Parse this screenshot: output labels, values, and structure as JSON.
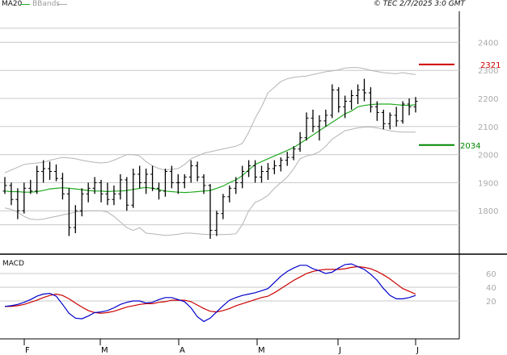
{
  "header": {
    "ma_label": "MA20",
    "bb_label": "BBands",
    "timestamp": "© TEC 2/7/2025 3:0 GMT"
  },
  "colors": {
    "ma": "#22aa22",
    "bbands": "#b4b4b4",
    "price": "#000000",
    "resistance": "#cc0000",
    "support": "#008800",
    "macd": "#0000cc",
    "signal": "#cc0000",
    "grid": "#c8c8c8"
  },
  "chart_data": [
    {
      "type": "ohlc",
      "panel": "price",
      "yticks": [
        1800,
        1900,
        2000,
        2100,
        2200,
        2300,
        2400
      ],
      "ylim": [
        1700,
        2490
      ],
      "xticks": [
        "F",
        "M",
        "A",
        "M",
        "J",
        "J"
      ],
      "levels": [
        {
          "label": "2321",
          "value": 2321,
          "kind": "resistance"
        },
        {
          "label": "2034",
          "value": 2034,
          "kind": "support"
        }
      ],
      "series": [
        {
          "name": "MA20",
          "values": [
            1870,
            1868,
            1868,
            1866,
            1866,
            1868,
            1872,
            1878,
            1880,
            1882,
            1880,
            1878,
            1875,
            1872,
            1870,
            1870,
            1868,
            1870,
            1870,
            1872,
            1876,
            1880,
            1883,
            1880,
            1875,
            1870,
            1868,
            1866,
            1865,
            1866,
            1868,
            1870,
            1872,
            1880,
            1888,
            1900,
            1910,
            1925,
            1945,
            1965,
            1975,
            1985,
            1995,
            2005,
            2015,
            2025,
            2040,
            2055,
            2070,
            2085,
            2100,
            2115,
            2130,
            2145,
            2155,
            2170,
            2175,
            2178,
            2180,
            2180,
            2180,
            2178,
            2176,
            2175,
            2178
          ]
        }
      ],
      "bbands_upper": [
        1935,
        1945,
        1955,
        1965,
        1968,
        1970,
        1972,
        1980,
        1985,
        1990,
        1988,
        1985,
        1980,
        1976,
        1972,
        1970,
        1972,
        1980,
        1990,
        2000,
        2000,
        1995,
        1975,
        1960,
        1950,
        1945,
        1948,
        1950,
        1965,
        1985,
        1995,
        2005,
        2010,
        2015,
        2020,
        2025,
        2030,
        2040,
        2080,
        2130,
        2170,
        2220,
        2240,
        2260,
        2270,
        2275,
        2278,
        2280,
        2285,
        2290,
        2295,
        2298,
        2302,
        2308,
        2310,
        2310,
        2306,
        2300,
        2296,
        2292,
        2290,
        2288,
        2292,
        2288,
        2285
      ],
      "bbands_lower": [
        1810,
        1805,
        1795,
        1780,
        1770,
        1768,
        1770,
        1776,
        1780,
        1785,
        1790,
        1795,
        1798,
        1800,
        1800,
        1800,
        1795,
        1780,
        1760,
        1740,
        1730,
        1740,
        1720,
        1718,
        1715,
        1712,
        1714,
        1716,
        1720,
        1720,
        1718,
        1716,
        1715,
        1715,
        1715,
        1716,
        1718,
        1750,
        1800,
        1830,
        1840,
        1855,
        1880,
        1900,
        1920,
        1950,
        1985,
        1995,
        2000,
        2010,
        2030,
        2055,
        2070,
        2085,
        2090,
        2095,
        2098,
        2098,
        2095,
        2090,
        2085,
        2082,
        2080,
        2080,
        2080
      ],
      "ohlc": [
        [
          1870,
          1920,
          1860,
          1890
        ],
        [
          1890,
          1900,
          1820,
          1840
        ],
        [
          1840,
          1880,
          1770,
          1800
        ],
        [
          1800,
          1900,
          1790,
          1880
        ],
        [
          1880,
          1910,
          1860,
          1870
        ],
        [
          1870,
          1960,
          1860,
          1940
        ],
        [
          1940,
          1980,
          1900,
          1950
        ],
        [
          1950,
          1975,
          1910,
          1940
        ],
        [
          1940,
          1965,
          1905,
          1915
        ],
        [
          1915,
          1935,
          1840,
          1860
        ],
        [
          1860,
          1880,
          1710,
          1740
        ],
        [
          1740,
          1820,
          1720,
          1800
        ],
        [
          1800,
          1880,
          1780,
          1860
        ],
        [
          1860,
          1900,
          1830,
          1880
        ],
        [
          1880,
          1920,
          1860,
          1900
        ],
        [
          1900,
          1910,
          1830,
          1860
        ],
        [
          1860,
          1900,
          1820,
          1840
        ],
        [
          1840,
          1890,
          1820,
          1860
        ],
        [
          1860,
          1930,
          1840,
          1910
        ],
        [
          1910,
          1920,
          1800,
          1820
        ],
        [
          1820,
          1950,
          1810,
          1930
        ],
        [
          1930,
          1960,
          1880,
          1900
        ],
        [
          1900,
          1950,
          1860,
          1930
        ],
        [
          1930,
          1960,
          1870,
          1880
        ],
        [
          1880,
          1900,
          1840,
          1870
        ],
        [
          1870,
          1950,
          1850,
          1940
        ],
        [
          1940,
          1960,
          1880,
          1900
        ],
        [
          1900,
          1930,
          1860,
          1900
        ],
        [
          1900,
          1930,
          1880,
          1920
        ],
        [
          1920,
          1980,
          1900,
          1960
        ],
        [
          1960,
          1975,
          1905,
          1920
        ],
        [
          1920,
          1930,
          1860,
          1890
        ],
        [
          1890,
          1895,
          1700,
          1730
        ],
        [
          1730,
          1800,
          1710,
          1790
        ],
        [
          1790,
          1860,
          1770,
          1850
        ],
        [
          1850,
          1890,
          1830,
          1880
        ],
        [
          1880,
          1920,
          1860,
          1900
        ],
        [
          1900,
          1960,
          1880,
          1940
        ],
        [
          1940,
          1980,
          1920,
          1960
        ],
        [
          1960,
          1980,
          1900,
          1920
        ],
        [
          1920,
          1960,
          1900,
          1940
        ],
        [
          1940,
          1970,
          1910,
          1950
        ],
        [
          1950,
          1980,
          1930,
          1960
        ],
        [
          1960,
          1990,
          1940,
          1980
        ],
        [
          1980,
          2010,
          1960,
          1990
        ],
        [
          1990,
          2030,
          1980,
          2020
        ],
        [
          2020,
          2080,
          2010,
          2060
        ],
        [
          2060,
          2150,
          2050,
          2130
        ],
        [
          2130,
          2160,
          2080,
          2100
        ],
        [
          2100,
          2140,
          2050,
          2120
        ],
        [
          2120,
          2160,
          2100,
          2140
        ],
        [
          2140,
          2250,
          2130,
          2230
        ],
        [
          2230,
          2240,
          2150,
          2170
        ],
        [
          2170,
          2210,
          2130,
          2190
        ],
        [
          2190,
          2230,
          2160,
          2210
        ],
        [
          2210,
          2250,
          2180,
          2230
        ],
        [
          2230,
          2270,
          2190,
          2220
        ],
        [
          2220,
          2240,
          2150,
          2170
        ],
        [
          2170,
          2190,
          2120,
          2150
        ],
        [
          2150,
          2160,
          2090,
          2110
        ],
        [
          2110,
          2150,
          2090,
          2140
        ],
        [
          2140,
          2170,
          2100,
          2120
        ],
        [
          2120,
          2190,
          2110,
          2180
        ],
        [
          2180,
          2200,
          2140,
          2170
        ],
        [
          2170,
          2205,
          2150,
          2190
        ]
      ]
    },
    {
      "type": "line",
      "panel": "macd",
      "title": "MACD",
      "yticks": [
        20,
        40,
        60
      ],
      "ylim": [
        -20,
        80
      ],
      "series": [
        {
          "name": "MACD",
          "values": [
            12,
            13,
            15,
            18,
            22,
            27,
            30,
            31,
            27,
            15,
            2,
            -5,
            -6,
            -2,
            3,
            4,
            6,
            10,
            15,
            18,
            20,
            20,
            17,
            18,
            22,
            25,
            25,
            22,
            19,
            10,
            -3,
            -10,
            -5,
            4,
            13,
            21,
            25,
            28,
            30,
            32,
            35,
            38,
            47,
            56,
            63,
            68,
            72,
            72,
            67,
            64,
            60,
            62,
            68,
            73,
            74,
            70,
            66,
            59,
            50,
            38,
            28,
            23,
            23,
            25,
            28
          ]
        },
        {
          "name": "Signal",
          "values": [
            12,
            12,
            13,
            15,
            18,
            21,
            25,
            28,
            30,
            28,
            23,
            17,
            11,
            6,
            3,
            2,
            3,
            5,
            8,
            11,
            13,
            15,
            16,
            16,
            18,
            19,
            21,
            21,
            21,
            19,
            14,
            9,
            5,
            4,
            6,
            9,
            13,
            16,
            19,
            22,
            25,
            27,
            32,
            38,
            44,
            50,
            55,
            60,
            63,
            65,
            66,
            66,
            66,
            67,
            69,
            70,
            69,
            67,
            63,
            58,
            52,
            45,
            38,
            34,
            30
          ]
        }
      ]
    }
  ]
}
